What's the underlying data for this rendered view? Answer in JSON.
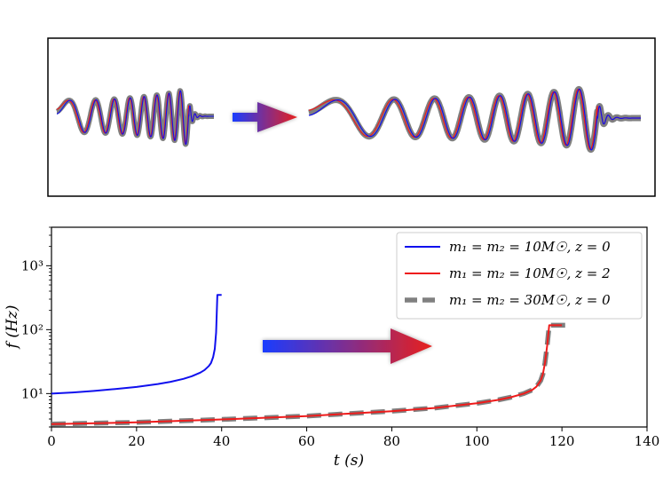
{
  "colors": {
    "blue": "#1010ee",
    "red": "#ee1b1b",
    "gray": "#808080",
    "arrow_start": "#1a3cff",
    "arrow_end": "#e8201c"
  },
  "chart_data": [
    {
      "type": "line",
      "title": "",
      "description_label": "",
      "series": [
        {
          "name": "waveform-left",
          "color_key": "blue",
          "cycles": 8
        },
        {
          "name": "waveform-right",
          "color_key": "red",
          "cycles": 8
        }
      ],
      "xlabel": "",
      "ylabel": "",
      "axes_visible": false
    },
    {
      "type": "line",
      "title": "",
      "xlabel": "t (s)",
      "ylabel": "f (Hz)",
      "xlim": [
        0,
        140
      ],
      "ylim": [
        3,
        4000
      ],
      "yscale": "log",
      "x_ticks": [
        0,
        20,
        40,
        60,
        80,
        100,
        120,
        140
      ],
      "x_tick_labels": [
        "0",
        "20",
        "40",
        "60",
        "80",
        "100",
        "120",
        "140"
      ],
      "y_ticks": [
        10,
        100,
        1000
      ],
      "y_tick_labels": [
        "10¹",
        "10²",
        "10³"
      ],
      "legend_position": "top-right",
      "series": [
        {
          "name": "m₁ = m₂ = 10M☉, z = 0",
          "color_key": "blue",
          "style": "solid",
          "x": [
            0,
            5,
            10,
            15,
            20,
            25,
            28,
            31,
            33,
            35,
            36,
            37,
            37.5,
            38,
            38.4,
            38.7,
            39,
            40
          ],
          "y": [
            10,
            10.4,
            11.0,
            11.8,
            12.7,
            14.1,
            15.3,
            17.0,
            18.7,
            21.3,
            23.4,
            27,
            30,
            37,
            50,
            90,
            350,
            350
          ]
        },
        {
          "name": "m₁ = m₂ = 10M☉, z = 2",
          "color_key": "red",
          "style": "solid",
          "x": [
            0,
            20,
            40,
            60,
            80,
            90,
            100,
            105,
            108,
            111,
            113,
            114,
            115,
            115.5,
            116,
            116.5,
            117,
            118,
            120
          ],
          "y": [
            3.33,
            3.54,
            3.94,
            4.44,
            5.3,
            5.95,
            7.05,
            7.95,
            8.75,
            10.0,
            11.4,
            12.8,
            16,
            20,
            30,
            55,
            117,
            117,
            117
          ]
        },
        {
          "name": "m₁ = m₂ = 30M☉, z = 0",
          "color_key": "gray",
          "style": "dashed",
          "x": [
            0,
            20,
            40,
            60,
            80,
            90,
            100,
            105,
            108,
            111,
            113,
            114,
            115,
            115.5,
            116,
            116.5,
            117,
            119,
            122
          ],
          "y": [
            3.33,
            3.54,
            3.94,
            4.44,
            5.3,
            5.95,
            7.05,
            7.95,
            8.75,
            10.0,
            11.4,
            12.8,
            16,
            20,
            30,
            55,
            117,
            117,
            117
          ]
        }
      ]
    }
  ]
}
